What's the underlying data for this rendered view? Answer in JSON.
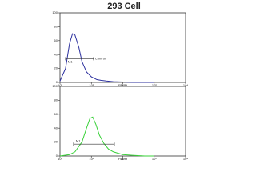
{
  "chart_data": [
    {
      "type": "line",
      "title": "293  Cell",
      "xlabel": "FL1-H",
      "xscale": "log",
      "xlim": [
        1,
        10000
      ],
      "xticks": [
        {
          "value": 1,
          "label": "10⁰"
        },
        {
          "value": 10,
          "label": "10¹"
        },
        {
          "value": 100,
          "label": "10²"
        },
        {
          "value": 1000,
          "label": "10³"
        },
        {
          "value": 10000,
          "label": "10⁴"
        }
      ],
      "ylim": [
        0,
        100
      ],
      "yticks": [
        0,
        20,
        40,
        60,
        80,
        100
      ],
      "x": [
        1,
        1.5,
        2,
        2.5,
        3,
        4,
        5,
        7,
        10,
        15,
        20,
        30,
        50,
        100,
        200,
        500,
        1000
      ],
      "series": [
        {
          "name": "Control",
          "color": "#2b2f9e",
          "values": [
            2,
            20,
            55,
            70,
            68,
            50,
            30,
            15,
            8,
            4,
            3,
            2,
            1,
            0.5,
            0,
            0,
            0
          ]
        }
      ],
      "markers": [
        {
          "label": "Control",
          "x": [
            1.5,
            11.7
          ],
          "y": 34
        },
        {
          "label": "M1",
          "x": [
            1.5,
            11.7
          ],
          "y": 34
        }
      ]
    },
    {
      "type": "line",
      "xlabel": "FL1-H",
      "xscale": "log",
      "xlim": [
        1,
        10000
      ],
      "xticks": [
        {
          "value": 1,
          "label": "10⁰"
        },
        {
          "value": 10,
          "label": "10¹"
        },
        {
          "value": 100,
          "label": "10²"
        },
        {
          "value": 1000,
          "label": "10³"
        },
        {
          "value": 10000,
          "label": "10⁴"
        }
      ],
      "ylim": [
        0,
        100
      ],
      "yticks": [
        0,
        20,
        40,
        60,
        80,
        100
      ],
      "x": [
        1,
        2,
        3,
        5,
        7,
        9,
        11,
        14,
        18,
        25,
        35,
        50,
        70,
        100,
        200,
        500,
        1000
      ],
      "series": [
        {
          "color": "#3ad13a",
          "values": [
            0,
            2,
            6,
            20,
            40,
            54,
            56,
            45,
            30,
            18,
            10,
            6,
            4,
            2,
            1,
            0,
            0
          ]
        }
      ],
      "markers": [
        {
          "label": "M1",
          "x": [
            2.7,
            54
          ],
          "y": 17
        }
      ]
    }
  ]
}
